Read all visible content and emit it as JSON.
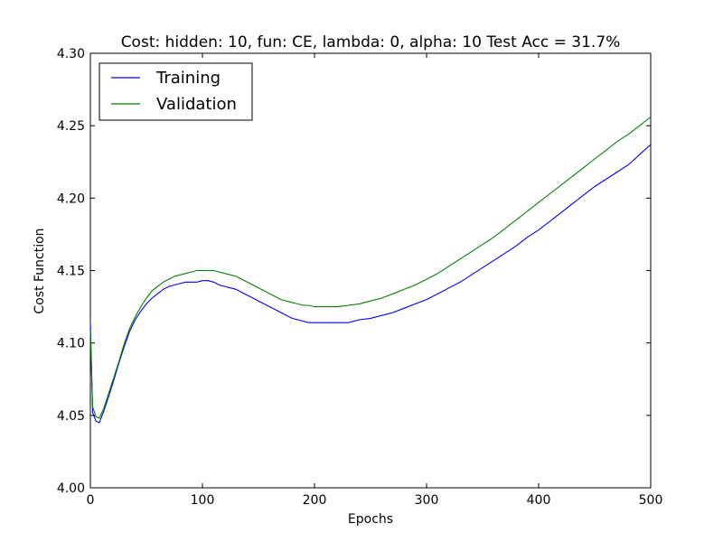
{
  "chart_data": {
    "type": "line",
    "title": "Cost: hidden: 10, fun: CE, lambda: 0, alpha: 10  Test Acc = 31.7%",
    "xlabel": "Epochs",
    "ylabel": "Cost Function",
    "xlim": [
      0,
      500
    ],
    "ylim": [
      4.0,
      4.3
    ],
    "xticks": [
      0,
      100,
      200,
      300,
      400,
      500
    ],
    "xtick_labels": [
      "0",
      "100",
      "200",
      "300",
      "400",
      "500"
    ],
    "yticks": [
      4.0,
      4.05,
      4.1,
      4.15,
      4.2,
      4.25,
      4.3
    ],
    "ytick_labels": [
      "4.00",
      "4.05",
      "4.10",
      "4.15",
      "4.20",
      "4.25",
      "4.30"
    ],
    "grid": false,
    "legend_position": "top-left",
    "series": [
      {
        "name": "Training",
        "color": "#0000ff",
        "x": [
          0,
          2,
          5,
          8,
          12,
          15,
          20,
          25,
          30,
          35,
          40,
          45,
          50,
          55,
          60,
          65,
          70,
          75,
          80,
          85,
          90,
          95,
          100,
          105,
          110,
          115,
          120,
          125,
          130,
          135,
          140,
          145,
          150,
          155,
          160,
          165,
          170,
          175,
          180,
          185,
          190,
          195,
          200,
          210,
          220,
          230,
          240,
          250,
          260,
          270,
          280,
          290,
          300,
          310,
          320,
          330,
          340,
          350,
          360,
          370,
          380,
          390,
          400,
          410,
          420,
          430,
          440,
          450,
          460,
          470,
          480,
          490,
          500
        ],
        "y": [
          4.114,
          4.052,
          4.046,
          4.045,
          4.053,
          4.06,
          4.072,
          4.085,
          4.097,
          4.108,
          4.116,
          4.122,
          4.127,
          4.131,
          4.134,
          4.137,
          4.139,
          4.14,
          4.141,
          4.142,
          4.142,
          4.142,
          4.143,
          4.143,
          4.142,
          4.14,
          4.139,
          4.138,
          4.137,
          4.135,
          4.133,
          4.131,
          4.129,
          4.127,
          4.125,
          4.123,
          4.121,
          4.119,
          4.117,
          4.116,
          4.115,
          4.114,
          4.114,
          4.114,
          4.114,
          4.114,
          4.116,
          4.117,
          4.119,
          4.121,
          4.124,
          4.127,
          4.13,
          4.134,
          4.138,
          4.142,
          4.147,
          4.152,
          4.157,
          4.162,
          4.167,
          4.173,
          4.178,
          4.184,
          4.19,
          4.196,
          4.202,
          4.208,
          4.213,
          4.218,
          4.223,
          4.23,
          4.237
        ]
      },
      {
        "name": "Validation",
        "color": "#008000",
        "x": [
          0,
          2,
          5,
          8,
          12,
          15,
          20,
          25,
          30,
          35,
          40,
          45,
          50,
          55,
          60,
          65,
          70,
          75,
          80,
          85,
          90,
          95,
          100,
          105,
          110,
          115,
          120,
          125,
          130,
          135,
          140,
          145,
          150,
          155,
          160,
          165,
          170,
          175,
          180,
          185,
          190,
          195,
          200,
          210,
          220,
          230,
          240,
          250,
          260,
          270,
          280,
          290,
          300,
          310,
          320,
          330,
          340,
          350,
          360,
          370,
          380,
          390,
          400,
          410,
          420,
          430,
          440,
          450,
          460,
          470,
          480,
          490,
          500
        ],
        "y": [
          4.109,
          4.056,
          4.049,
          4.048,
          4.055,
          4.062,
          4.074,
          4.086,
          4.099,
          4.11,
          4.118,
          4.125,
          4.131,
          4.136,
          4.139,
          4.142,
          4.144,
          4.146,
          4.147,
          4.148,
          4.149,
          4.15,
          4.15,
          4.15,
          4.15,
          4.149,
          4.148,
          4.147,
          4.146,
          4.144,
          4.142,
          4.14,
          4.138,
          4.136,
          4.134,
          4.132,
          4.13,
          4.129,
          4.128,
          4.127,
          4.126,
          4.126,
          4.125,
          4.125,
          4.125,
          4.126,
          4.127,
          4.129,
          4.131,
          4.134,
          4.137,
          4.14,
          4.144,
          4.148,
          4.153,
          4.158,
          4.163,
          4.168,
          4.173,
          4.179,
          4.185,
          4.191,
          4.197,
          4.203,
          4.209,
          4.215,
          4.221,
          4.227,
          4.233,
          4.239,
          4.244,
          4.25,
          4.256
        ]
      }
    ]
  }
}
